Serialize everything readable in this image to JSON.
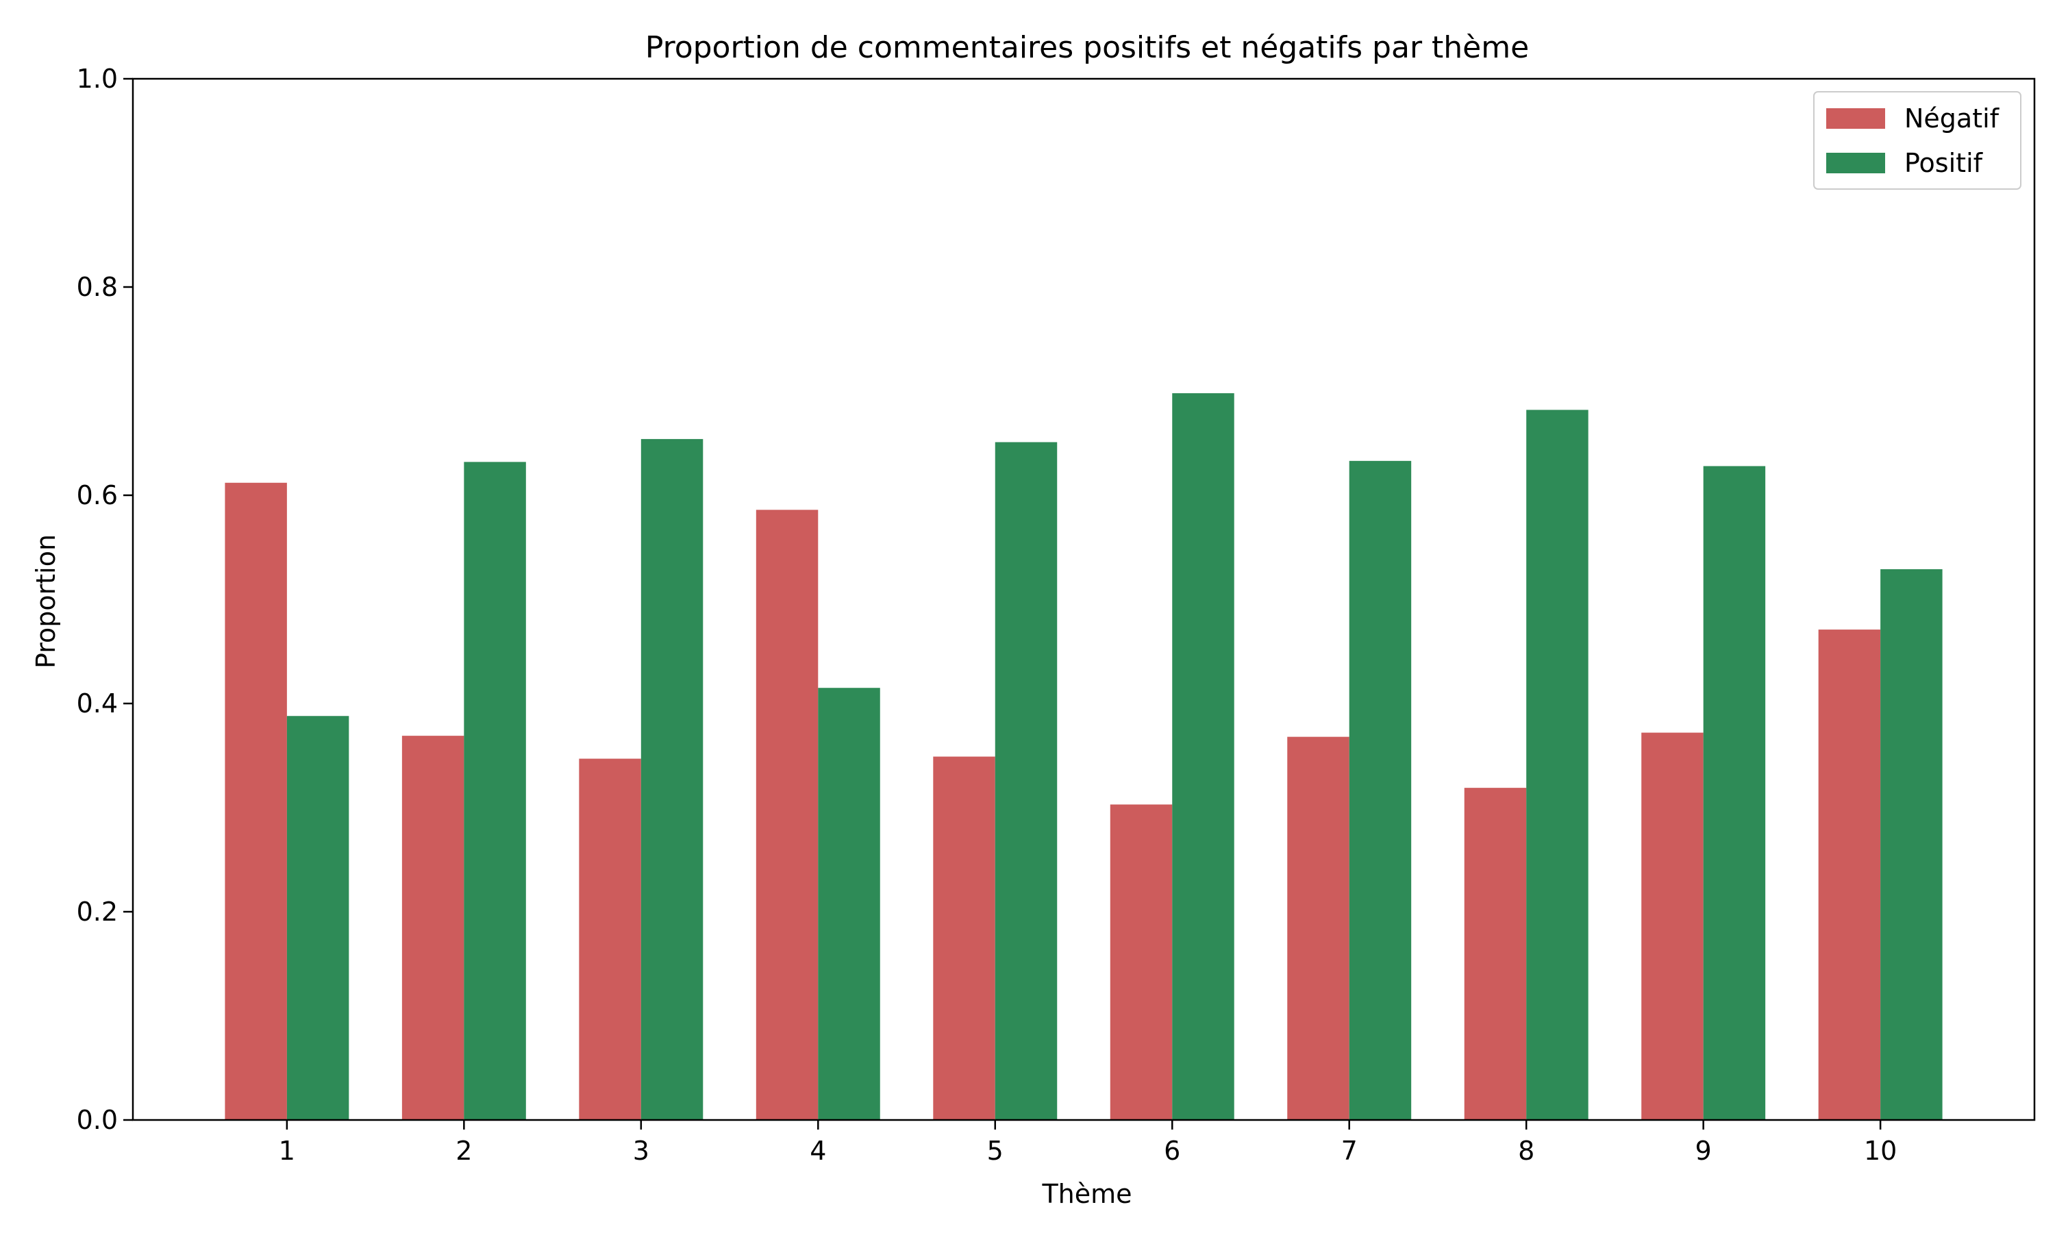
{
  "chart_data": {
    "type": "bar",
    "title": "Proportion de commentaires positifs et négatifs par thème",
    "xlabel": "Thème",
    "ylabel": "Proportion",
    "categories": [
      "1",
      "2",
      "3",
      "4",
      "5",
      "6",
      "7",
      "8",
      "9",
      "10"
    ],
    "series": [
      {
        "name": "Négatif",
        "color": "#CD5C5C",
        "values": [
          0.612,
          0.369,
          0.347,
          0.586,
          0.349,
          0.303,
          0.368,
          0.319,
          0.372,
          0.471
        ]
      },
      {
        "name": "Positif",
        "color": "#2E8B57",
        "values": [
          0.388,
          0.632,
          0.654,
          0.415,
          0.651,
          0.698,
          0.633,
          0.682,
          0.628,
          0.529
        ]
      }
    ],
    "ylim": [
      0,
      1.0
    ],
    "yticks": [
      {
        "value": 0.0,
        "label": "0.0"
      },
      {
        "value": 0.2,
        "label": "0.2"
      },
      {
        "value": 0.4,
        "label": "0.4"
      },
      {
        "value": 0.6,
        "label": "0.6"
      },
      {
        "value": 0.8,
        "label": "0.8"
      },
      {
        "value": 1.0,
        "label": "1.0"
      }
    ],
    "grid": false,
    "legend_position": "top-right"
  }
}
